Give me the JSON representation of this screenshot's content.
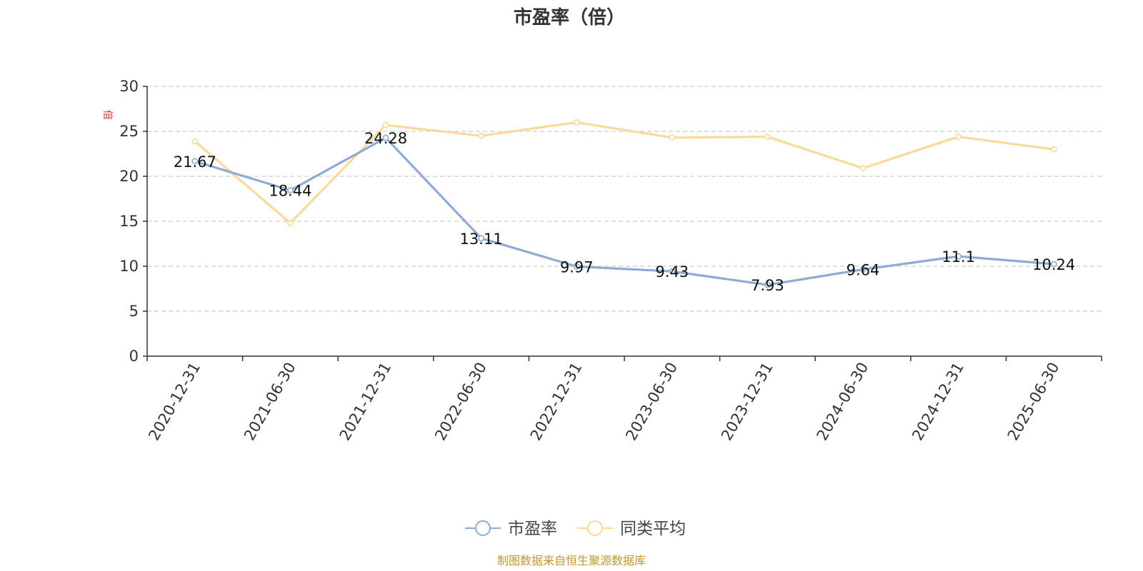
{
  "chart_data": {
    "type": "line",
    "title": "市盈率（倍）",
    "ylabel": "倍",
    "xlabel": "",
    "categories": [
      "2020-12-31",
      "2021-06-30",
      "2021-12-31",
      "2022-06-30",
      "2022-12-31",
      "2023-06-30",
      "2023-12-31",
      "2024-06-30",
      "2024-12-31",
      "2025-06-30"
    ],
    "ylim": [
      0,
      30
    ],
    "yticks": [
      0,
      5,
      10,
      15,
      20,
      25,
      30
    ],
    "grid": true,
    "legend_position": "bottom",
    "series": [
      {
        "name": "市盈率",
        "color": "#8eaad8",
        "values": [
          21.67,
          18.44,
          24.28,
          13.11,
          9.97,
          9.43,
          7.93,
          9.64,
          11.1,
          10.24
        ],
        "labels": [
          "21.67",
          "18.44",
          "24.28",
          "13.11",
          "9.97",
          "9.43",
          "7.93",
          "9.64",
          "11.1",
          "10.24"
        ]
      },
      {
        "name": "同类平均",
        "color": "#fcd999",
        "values": [
          23.9,
          14.8,
          25.7,
          24.5,
          26.0,
          24.3,
          24.4,
          20.9,
          24.4,
          23.0
        ]
      }
    ]
  },
  "colors": {
    "unit_label": "#e3262b",
    "source_text": "#c8952b",
    "axis": "#333333",
    "grid": "#cccccc"
  },
  "footer": {
    "source": "制图数据来自恒生聚源数据库"
  }
}
